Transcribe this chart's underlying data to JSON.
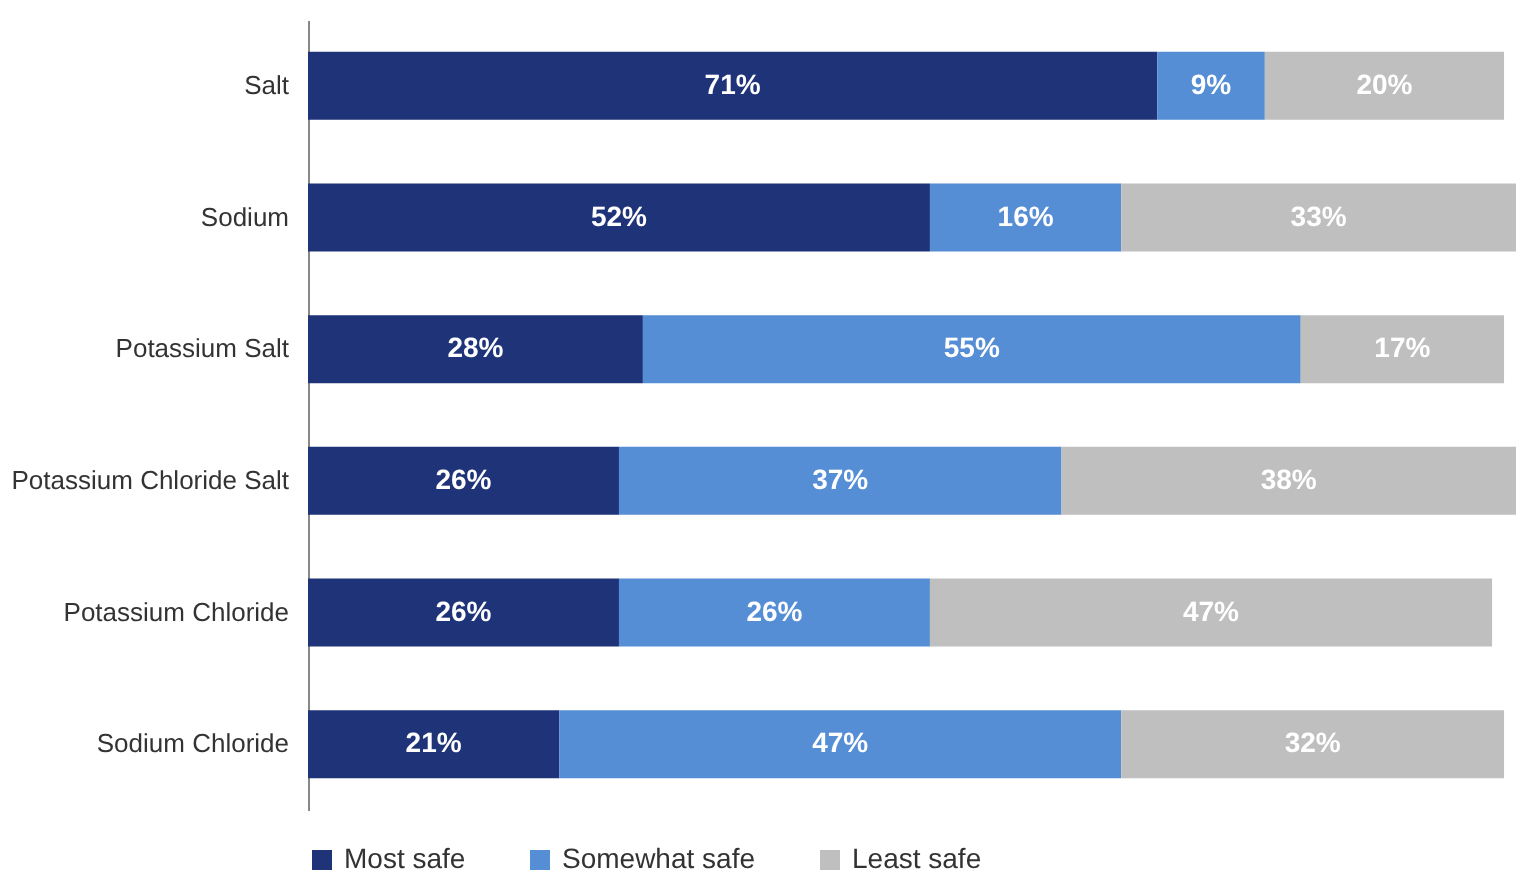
{
  "chart_data": {
    "type": "bar",
    "orientation": "horizontal",
    "stacked": true,
    "legend": "bottom",
    "grid": false,
    "categories": [
      "Salt",
      "Sodium",
      "Potassium Salt",
      "Potassium Chloride Salt",
      "Potassium Chloride",
      "Sodium Chloride"
    ],
    "series": [
      {
        "name": "Most safe",
        "color": "#1f3379",
        "values": [
          71,
          52,
          28,
          26,
          26,
          21
        ],
        "value_labels": [
          "71%",
          "52%",
          "28%",
          "26%",
          "26%",
          "21%"
        ]
      },
      {
        "name": "Somewhat safe",
        "color": "#558ed5",
        "values": [
          9,
          16,
          55,
          37,
          26,
          47
        ],
        "value_labels": [
          "9%",
          "16%",
          "55%",
          "37%",
          "26%",
          "47%"
        ]
      },
      {
        "name": "Least safe",
        "color": "#bfbfbf",
        "values": [
          20,
          33,
          17,
          38,
          47,
          32
        ],
        "value_labels": [
          "20%",
          "33%",
          "17%",
          "38%",
          "47%",
          "32%"
        ]
      }
    ]
  }
}
